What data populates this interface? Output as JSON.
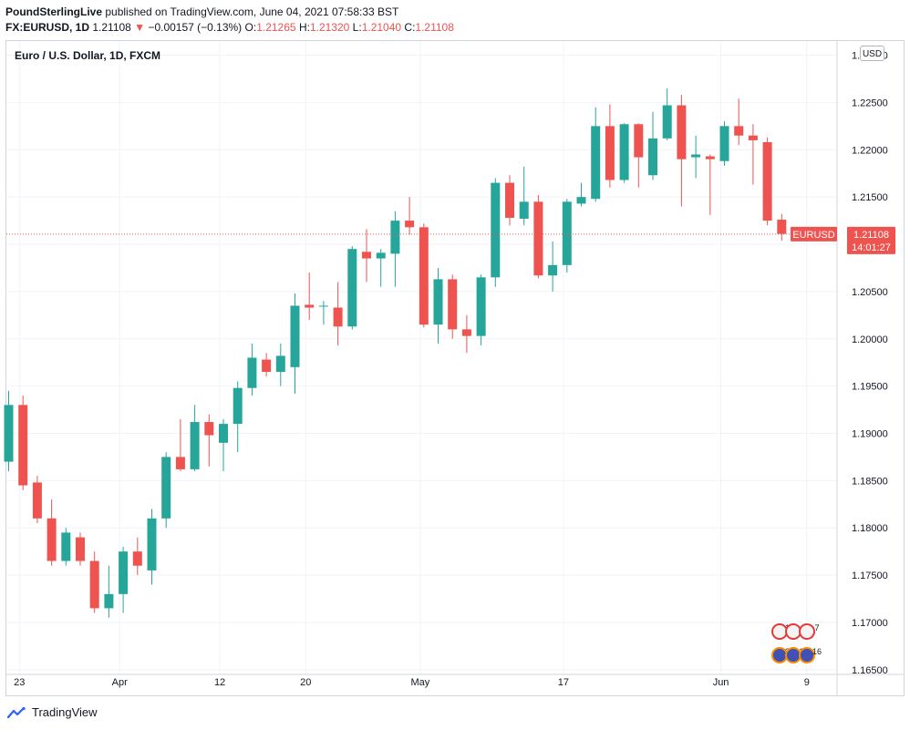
{
  "header": {
    "publisher": "PoundSterlingLive",
    "published_text": " published on TradingView.com, June 04, 2021 07:58:33 BST",
    "symbol": "FX:EURUSD, 1D",
    "last": "1.21108",
    "change_arrow": "▼",
    "change": "−0.00157 (−0.13%)",
    "o_label": "O:",
    "o_value": "1.21265",
    "h_label": "H:",
    "h_value": "1.21320",
    "l_label": "L:",
    "l_value": "1.21040",
    "c_label": "C:",
    "c_value": "1.21108"
  },
  "footer": {
    "brand": "TradingView"
  },
  "chart_data": {
    "type": "candlestick",
    "title": "Euro / U.S. Dollar, 1D, FXCM",
    "currency": "USD",
    "ylim": [
      1.1645,
      1.2315
    ],
    "y_ticks": [
      1.165,
      1.17,
      1.175,
      1.18,
      1.185,
      1.19,
      1.195,
      1.2,
      1.205,
      1.21,
      1.215,
      1.22,
      1.225,
      1.23
    ],
    "y_tick_labels": [
      "1.16500",
      "1.17000",
      "1.17500",
      "1.18000",
      "1.18500",
      "1.19000",
      "1.19500",
      "1.20000",
      "1.20500",
      "1.21000",
      "1.21500",
      "1.22000",
      "1.22500",
      "1.23000"
    ],
    "x_ticks": [
      {
        "index": 0.75,
        "label": "23"
      },
      {
        "index": 7.75,
        "label": "Apr"
      },
      {
        "index": 14.75,
        "label": "12"
      },
      {
        "index": 20.75,
        "label": "20"
      },
      {
        "index": 28.75,
        "label": "May"
      },
      {
        "index": 38.75,
        "label": "17"
      },
      {
        "index": 49.75,
        "label": "Jun"
      },
      {
        "index": 55.75,
        "label": "9"
      }
    ],
    "price_label": {
      "symbol": "EURUSD",
      "value": "1.21108",
      "countdown": "14:01:27",
      "price": 1.21108
    },
    "candles": [
      {
        "o": 1.187,
        "h": 1.1945,
        "l": 1.186,
        "c": 1.193
      },
      {
        "o": 1.193,
        "h": 1.194,
        "l": 1.184,
        "c": 1.1845
      },
      {
        "o": 1.1848,
        "h": 1.1855,
        "l": 1.1805,
        "c": 1.181
      },
      {
        "o": 1.181,
        "h": 1.183,
        "l": 1.176,
        "c": 1.1765
      },
      {
        "o": 1.1765,
        "h": 1.18,
        "l": 1.176,
        "c": 1.1795
      },
      {
        "o": 1.179,
        "h": 1.1795,
        "l": 1.176,
        "c": 1.1765
      },
      {
        "o": 1.1765,
        "h": 1.1775,
        "l": 1.171,
        "c": 1.1715
      },
      {
        "o": 1.1715,
        "h": 1.176,
        "l": 1.1705,
        "c": 1.173
      },
      {
        "o": 1.173,
        "h": 1.178,
        "l": 1.171,
        "c": 1.1775
      },
      {
        "o": 1.1775,
        "h": 1.179,
        "l": 1.175,
        "c": 1.176
      },
      {
        "o": 1.1755,
        "h": 1.182,
        "l": 1.174,
        "c": 1.181
      },
      {
        "o": 1.181,
        "h": 1.188,
        "l": 1.18,
        "c": 1.1875
      },
      {
        "o": 1.1875,
        "h": 1.1915,
        "l": 1.186,
        "c": 1.1862
      },
      {
        "o": 1.1862,
        "h": 1.193,
        "l": 1.186,
        "c": 1.1912
      },
      {
        "o": 1.1912,
        "h": 1.192,
        "l": 1.1865,
        "c": 1.1898
      },
      {
        "o": 1.189,
        "h": 1.1915,
        "l": 1.186,
        "c": 1.191
      },
      {
        "o": 1.191,
        "h": 1.1955,
        "l": 1.188,
        "c": 1.1948
      },
      {
        "o": 1.1948,
        "h": 1.1995,
        "l": 1.194,
        "c": 1.198
      },
      {
        "o": 1.1978,
        "h": 1.1985,
        "l": 1.196,
        "c": 1.1965
      },
      {
        "o": 1.1965,
        "h": 1.1995,
        "l": 1.195,
        "c": 1.1982
      },
      {
        "o": 1.197,
        "h": 1.2048,
        "l": 1.1942,
        "c": 1.2035
      },
      {
        "o": 1.2036,
        "h": 1.207,
        "l": 1.202,
        "c": 1.2033
      },
      {
        "o": 1.2035,
        "h": 1.204,
        "l": 1.2015,
        "c": 1.2035
      },
      {
        "o": 1.2033,
        "h": 1.206,
        "l": 1.1993,
        "c": 1.2013
      },
      {
        "o": 1.2013,
        "h": 1.2098,
        "l": 1.201,
        "c": 1.2095
      },
      {
        "o": 1.2092,
        "h": 1.2116,
        "l": 1.206,
        "c": 1.2085
      },
      {
        "o": 1.2085,
        "h": 1.2095,
        "l": 1.2055,
        "c": 1.2091
      },
      {
        "o": 1.209,
        "h": 1.2135,
        "l": 1.2055,
        "c": 1.2125
      },
      {
        "o": 1.2125,
        "h": 1.215,
        "l": 1.211,
        "c": 1.2118
      },
      {
        "o": 1.2118,
        "h": 1.2122,
        "l": 1.2012,
        "c": 1.2015
      },
      {
        "o": 1.2015,
        "h": 1.2075,
        "l": 1.1995,
        "c": 1.2063
      },
      {
        "o": 1.2063,
        "h": 1.2068,
        "l": 1.2,
        "c": 1.201
      },
      {
        "o": 1.201,
        "h": 1.2025,
        "l": 1.1985,
        "c": 1.2003
      },
      {
        "o": 1.2003,
        "h": 1.2068,
        "l": 1.1993,
        "c": 1.2065
      },
      {
        "o": 1.2065,
        "h": 1.217,
        "l": 1.2055,
        "c": 1.2165
      },
      {
        "o": 1.2165,
        "h": 1.2173,
        "l": 1.212,
        "c": 1.2128
      },
      {
        "o": 1.2127,
        "h": 1.2182,
        "l": 1.212,
        "c": 1.2145
      },
      {
        "o": 1.2145,
        "h": 1.2152,
        "l": 1.2064,
        "c": 1.2067
      },
      {
        "o": 1.2067,
        "h": 1.2103,
        "l": 1.205,
        "c": 1.2078
      },
      {
        "o": 1.2078,
        "h": 1.2148,
        "l": 1.207,
        "c": 1.2145
      },
      {
        "o": 1.2143,
        "h": 1.2165,
        "l": 1.214,
        "c": 1.215
      },
      {
        "o": 1.2148,
        "h": 1.2245,
        "l": 1.2145,
        "c": 1.2225
      },
      {
        "o": 1.2225,
        "h": 1.2248,
        "l": 1.216,
        "c": 1.2168
      },
      {
        "o": 1.2168,
        "h": 1.2228,
        "l": 1.2165,
        "c": 1.2227
      },
      {
        "o": 1.2227,
        "h": 1.2228,
        "l": 1.216,
        "c": 1.2192
      },
      {
        "o": 1.2173,
        "h": 1.224,
        "l": 1.2168,
        "c": 1.2212
      },
      {
        "o": 1.2212,
        "h": 1.2265,
        "l": 1.221,
        "c": 1.2247
      },
      {
        "o": 1.2247,
        "h": 1.2258,
        "l": 1.214,
        "c": 1.219
      },
      {
        "o": 1.2192,
        "h": 1.2215,
        "l": 1.217,
        "c": 1.2195
      },
      {
        "o": 1.2193,
        "h": 1.2195,
        "l": 1.2131,
        "c": 1.219
      },
      {
        "o": 1.2188,
        "h": 1.223,
        "l": 1.2183,
        "c": 1.2225
      },
      {
        "o": 1.2225,
        "h": 1.2254,
        "l": 1.2205,
        "c": 1.2215
      },
      {
        "o": 1.2215,
        "h": 1.2227,
        "l": 1.2163,
        "c": 1.221
      },
      {
        "o": 1.2208,
        "h": 1.2213,
        "l": 1.212,
        "c": 1.2125
      },
      {
        "o": 1.2126,
        "h": 1.2132,
        "l": 1.2104,
        "c": 1.2111
      }
    ]
  },
  "events": {
    "row1": {
      "a": "10",
      "b": "8",
      "c": "7"
    },
    "row2": {
      "a": "33",
      "b": "11",
      "c": "16"
    }
  }
}
